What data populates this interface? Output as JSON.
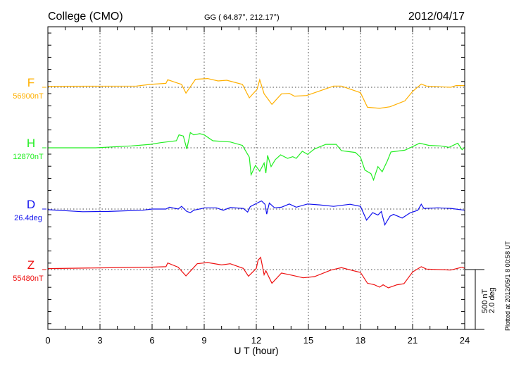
{
  "header": {
    "station": "College (CMO)",
    "coords": "GG ( 64.87°, 212.17°)",
    "date": "2012/04/17"
  },
  "footer": {
    "plotted": "Plotted at 2012/05/1 8 00:58 UT"
  },
  "scale": {
    "nt": "500 nT",
    "deg": "2.0 deg"
  },
  "chart_data": {
    "type": "line",
    "xlabel": "U T (hour)",
    "xlim": [
      0,
      24
    ],
    "xticks": [
      "0",
      "3",
      "6",
      "9",
      "12",
      "15",
      "18",
      "21",
      "24"
    ],
    "grid": "dotted vertical every 3 hours, dotted baseline per trace",
    "scale_nT_per_bar": 500,
    "scale_deg_per_bar": 2.0,
    "series": [
      {
        "name": "F",
        "baseline_label": "56900nT",
        "color": "#ffb000",
        "unit": "nT",
        "points": [
          [
            0,
            8
          ],
          [
            5.1,
            10
          ],
          [
            5.9,
            24
          ],
          [
            6.8,
            33
          ],
          [
            6.9,
            63
          ],
          [
            7.3,
            43
          ],
          [
            7.7,
            24
          ],
          [
            7.95,
            -49
          ],
          [
            8.2,
            4
          ],
          [
            8.5,
            67
          ],
          [
            9.2,
            73
          ],
          [
            9.8,
            53
          ],
          [
            10.3,
            59
          ],
          [
            11.2,
            24
          ],
          [
            11.6,
            -88
          ],
          [
            12.05,
            -16
          ],
          [
            12.2,
            63
          ],
          [
            12.45,
            -55
          ],
          [
            12.9,
            -143
          ],
          [
            13.45,
            -55
          ],
          [
            13.9,
            -51
          ],
          [
            14.2,
            -74
          ],
          [
            14.9,
            -69
          ],
          [
            16.45,
            10
          ],
          [
            16.9,
            10
          ],
          [
            18.0,
            -45
          ],
          [
            18.4,
            -167
          ],
          [
            19.1,
            -176
          ],
          [
            19.7,
            -163
          ],
          [
            20.55,
            -114
          ],
          [
            21.0,
            -35
          ],
          [
            21.5,
            27
          ],
          [
            21.8,
            10
          ],
          [
            23.2,
            0
          ],
          [
            23.5,
            14
          ],
          [
            24,
            14
          ]
        ]
      },
      {
        "name": "H",
        "baseline_label": "12870nT",
        "color": "#22ee22",
        "unit": "nT",
        "points": [
          [
            0,
            0
          ],
          [
            2.75,
            0
          ],
          [
            4.8,
            16
          ],
          [
            5.9,
            29
          ],
          [
            6.5,
            43
          ],
          [
            7.4,
            59
          ],
          [
            7.55,
            108
          ],
          [
            7.8,
            98
          ],
          [
            8.0,
            -10
          ],
          [
            8.2,
            127
          ],
          [
            8.4,
            108
          ],
          [
            8.75,
            118
          ],
          [
            9.0,
            108
          ],
          [
            9.5,
            59
          ],
          [
            10.5,
            49
          ],
          [
            11.2,
            20
          ],
          [
            11.6,
            -78
          ],
          [
            11.7,
            -225
          ],
          [
            11.95,
            -147
          ],
          [
            12.2,
            -196
          ],
          [
            12.45,
            -127
          ],
          [
            12.55,
            -212
          ],
          [
            12.65,
            -63
          ],
          [
            12.85,
            -157
          ],
          [
            13.1,
            -98
          ],
          [
            13.4,
            -59
          ],
          [
            13.8,
            -88
          ],
          [
            14.1,
            -74
          ],
          [
            14.3,
            -88
          ],
          [
            14.65,
            -29
          ],
          [
            14.95,
            -55
          ],
          [
            15.35,
            -10
          ],
          [
            16.0,
            29
          ],
          [
            16.6,
            29
          ],
          [
            16.9,
            -24
          ],
          [
            17.7,
            -39
          ],
          [
            18.0,
            -78
          ],
          [
            18.25,
            -186
          ],
          [
            18.6,
            -216
          ],
          [
            18.75,
            -268
          ],
          [
            19.0,
            -157
          ],
          [
            19.25,
            -200
          ],
          [
            19.55,
            -108
          ],
          [
            19.75,
            -35
          ],
          [
            20.55,
            -20
          ],
          [
            21.0,
            10
          ],
          [
            21.4,
            39
          ],
          [
            21.95,
            20
          ],
          [
            22.6,
            16
          ],
          [
            23.1,
            4
          ],
          [
            23.6,
            39
          ],
          [
            23.85,
            -16
          ],
          [
            24,
            4
          ]
        ]
      },
      {
        "name": "D",
        "baseline_label": "26.4deg",
        "color": "#1010ee",
        "unit": "deg",
        "points": [
          [
            0,
            -0.02
          ],
          [
            2.0,
            -0.09
          ],
          [
            3.5,
            -0.08
          ],
          [
            5.45,
            -0.04
          ],
          [
            6.0,
            0
          ],
          [
            6.8,
            0
          ],
          [
            7.0,
            0.06
          ],
          [
            7.5,
            0
          ],
          [
            7.7,
            0.09
          ],
          [
            8.0,
            -0.08
          ],
          [
            8.2,
            -0.12
          ],
          [
            8.4,
            -0.04
          ],
          [
            9.05,
            0.04
          ],
          [
            9.7,
            0.04
          ],
          [
            10.1,
            -0.04
          ],
          [
            10.5,
            0.05
          ],
          [
            11.25,
            0.02
          ],
          [
            11.5,
            -0.1
          ],
          [
            11.65,
            0.08
          ],
          [
            12.05,
            0.2
          ],
          [
            12.3,
            0.27
          ],
          [
            12.5,
            0.16
          ],
          [
            12.6,
            -0.17
          ],
          [
            12.75,
            0.2
          ],
          [
            13.05,
            0.04
          ],
          [
            13.45,
            0.06
          ],
          [
            13.9,
            0.17
          ],
          [
            14.3,
            0.06
          ],
          [
            14.95,
            0.17
          ],
          [
            15.65,
            0.14
          ],
          [
            16.45,
            0.09
          ],
          [
            17.4,
            0.16
          ],
          [
            18.0,
            0.09
          ],
          [
            18.35,
            -0.37
          ],
          [
            18.7,
            -0.12
          ],
          [
            19.0,
            -0.2
          ],
          [
            19.2,
            -0.08
          ],
          [
            19.4,
            -0.53
          ],
          [
            19.7,
            -0.24
          ],
          [
            19.9,
            -0.18
          ],
          [
            20.4,
            -0.3
          ],
          [
            20.85,
            -0.13
          ],
          [
            21.3,
            -0.04
          ],
          [
            21.5,
            0.16
          ],
          [
            21.65,
            0.02
          ],
          [
            22.45,
            0.04
          ],
          [
            23.2,
            0.02
          ],
          [
            24,
            -0.04
          ]
        ]
      },
      {
        "name": "Z",
        "baseline_label": "55480nT",
        "color": "#ee1010",
        "unit": "nT",
        "points": [
          [
            0,
            8
          ],
          [
            5.9,
            20
          ],
          [
            6.8,
            24
          ],
          [
            6.9,
            55
          ],
          [
            7.5,
            20
          ],
          [
            7.95,
            -53
          ],
          [
            8.6,
            49
          ],
          [
            9.2,
            59
          ],
          [
            10.0,
            39
          ],
          [
            10.5,
            49
          ],
          [
            11.25,
            10
          ],
          [
            11.55,
            -55
          ],
          [
            12.0,
            10
          ],
          [
            12.1,
            78
          ],
          [
            12.25,
            102
          ],
          [
            12.45,
            -43
          ],
          [
            12.55,
            -10
          ],
          [
            12.9,
            -114
          ],
          [
            13.45,
            -29
          ],
          [
            14.1,
            -49
          ],
          [
            14.7,
            -69
          ],
          [
            15.35,
            -59
          ],
          [
            16.3,
            -4
          ],
          [
            16.9,
            16
          ],
          [
            18.0,
            -24
          ],
          [
            18.4,
            -114
          ],
          [
            18.8,
            -127
          ],
          [
            19.1,
            -147
          ],
          [
            19.3,
            -127
          ],
          [
            19.6,
            -153
          ],
          [
            20.1,
            -127
          ],
          [
            20.5,
            -118
          ],
          [
            21.0,
            -20
          ],
          [
            21.5,
            24
          ],
          [
            21.8,
            4
          ],
          [
            23.2,
            -4
          ],
          [
            23.85,
            20
          ],
          [
            24,
            10
          ]
        ]
      }
    ]
  }
}
